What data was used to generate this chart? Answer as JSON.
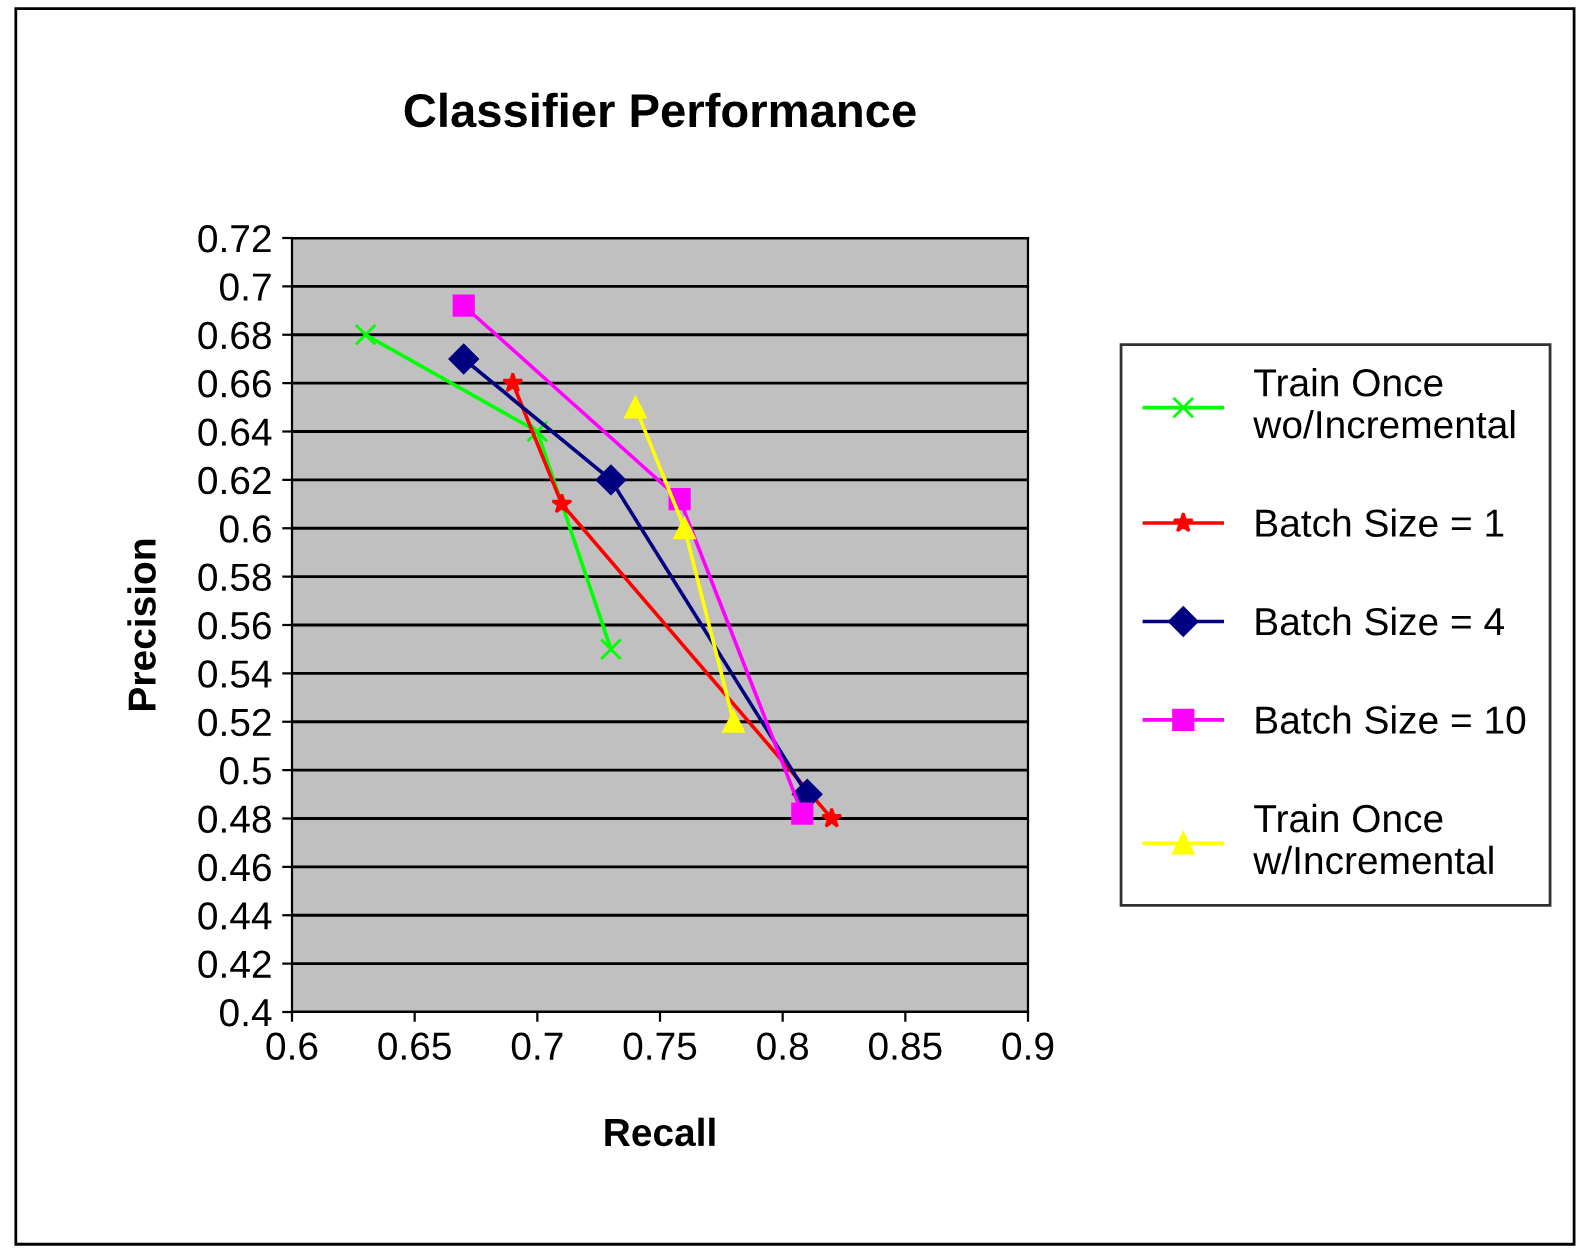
{
  "chart_data": {
    "type": "line",
    "title": "Classifier Performance",
    "xlabel": "Recall",
    "ylabel": "Precision",
    "xlim": [
      0.6,
      0.9
    ],
    "xticks": [
      0.6,
      0.65,
      0.7,
      0.75,
      0.8,
      0.85,
      0.9
    ],
    "ylim": [
      0.4,
      0.72
    ],
    "yticks": [
      0.4,
      0.42,
      0.44,
      0.46,
      0.48,
      0.5,
      0.52,
      0.54,
      0.56,
      0.58,
      0.6,
      0.62,
      0.64,
      0.66,
      0.68,
      0.7,
      0.72
    ],
    "grid": "y",
    "legend": "right",
    "series": [
      {
        "name": "Train Once\nwo/Incremental",
        "color": "#00ff00",
        "marker": "cross",
        "x": [
          0.63,
          0.7,
          0.73
        ],
        "values": [
          0.68,
          0.64,
          0.55
        ]
      },
      {
        "name": "Batch Size = 1",
        "color": "#ff0000",
        "marker": "star",
        "x": [
          0.69,
          0.71,
          0.82
        ],
        "values": [
          0.66,
          0.61,
          0.48
        ]
      },
      {
        "name": "Batch Size = 4",
        "color": "#000080",
        "marker": "diamond",
        "x": [
          0.67,
          0.73,
          0.81
        ],
        "values": [
          0.67,
          0.62,
          0.49
        ]
      },
      {
        "name": "Batch Size = 10",
        "color": "#ff00ff",
        "marker": "square",
        "x": [
          0.67,
          0.758,
          0.808
        ],
        "values": [
          0.692,
          0.612,
          0.482
        ]
      },
      {
        "name": "Train Once\nw/Incremental",
        "color": "#ffff00",
        "marker": "triangle",
        "x": [
          0.74,
          0.76,
          0.78
        ],
        "values": [
          0.65,
          0.6,
          0.52
        ]
      }
    ]
  }
}
